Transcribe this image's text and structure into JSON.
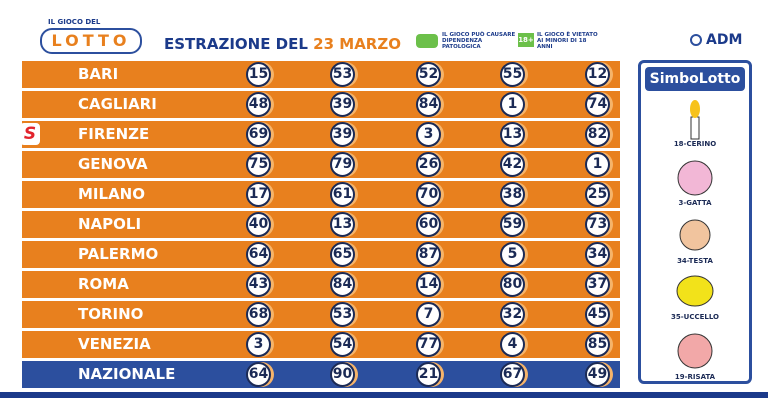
{
  "header": {
    "brand_top": "IL GIOCO DEL",
    "brand": "LOTTO",
    "title": "ESTRAZIONE DEL",
    "date": "23 MARZO",
    "warning1": "IL GIOCO PUÒ CAUSARE DIPENDENZA PATOLOGICA",
    "age": "18+",
    "warning2": "IL GIOCO È VIETATO AI MINORI DI 18 ANNI",
    "agency": "ADM"
  },
  "table": {
    "rows": [
      {
        "city": "BARI",
        "numbers": [
          15,
          53,
          52,
          55,
          12
        ]
      },
      {
        "city": "CAGLIARI",
        "numbers": [
          48,
          39,
          84,
          1,
          74
        ]
      },
      {
        "city": "FIRENZE",
        "marker": "S",
        "numbers": [
          69,
          39,
          3,
          13,
          82
        ]
      },
      {
        "city": "GENOVA",
        "numbers": [
          75,
          79,
          26,
          42,
          1
        ]
      },
      {
        "city": "MILANO",
        "numbers": [
          17,
          61,
          70,
          38,
          25
        ]
      },
      {
        "city": "NAPOLI",
        "numbers": [
          40,
          13,
          60,
          59,
          73
        ]
      },
      {
        "city": "PALERMO",
        "numbers": [
          64,
          65,
          87,
          5,
          34
        ]
      },
      {
        "city": "ROMA",
        "numbers": [
          43,
          84,
          14,
          80,
          37
        ]
      },
      {
        "city": "TORINO",
        "numbers": [
          68,
          53,
          7,
          32,
          45
        ]
      },
      {
        "city": "VENEZIA",
        "numbers": [
          3,
          54,
          77,
          4,
          85
        ]
      },
      {
        "city": "NAZIONALE",
        "numbers": [
          64,
          90,
          21,
          67,
          49
        ]
      }
    ]
  },
  "simbolotto": {
    "title": "SimboLotto",
    "symbols": [
      "18-CERINO",
      "3-GATTA",
      "34-TESTA",
      "35-UCCELLO",
      "19-RISATA"
    ]
  }
}
